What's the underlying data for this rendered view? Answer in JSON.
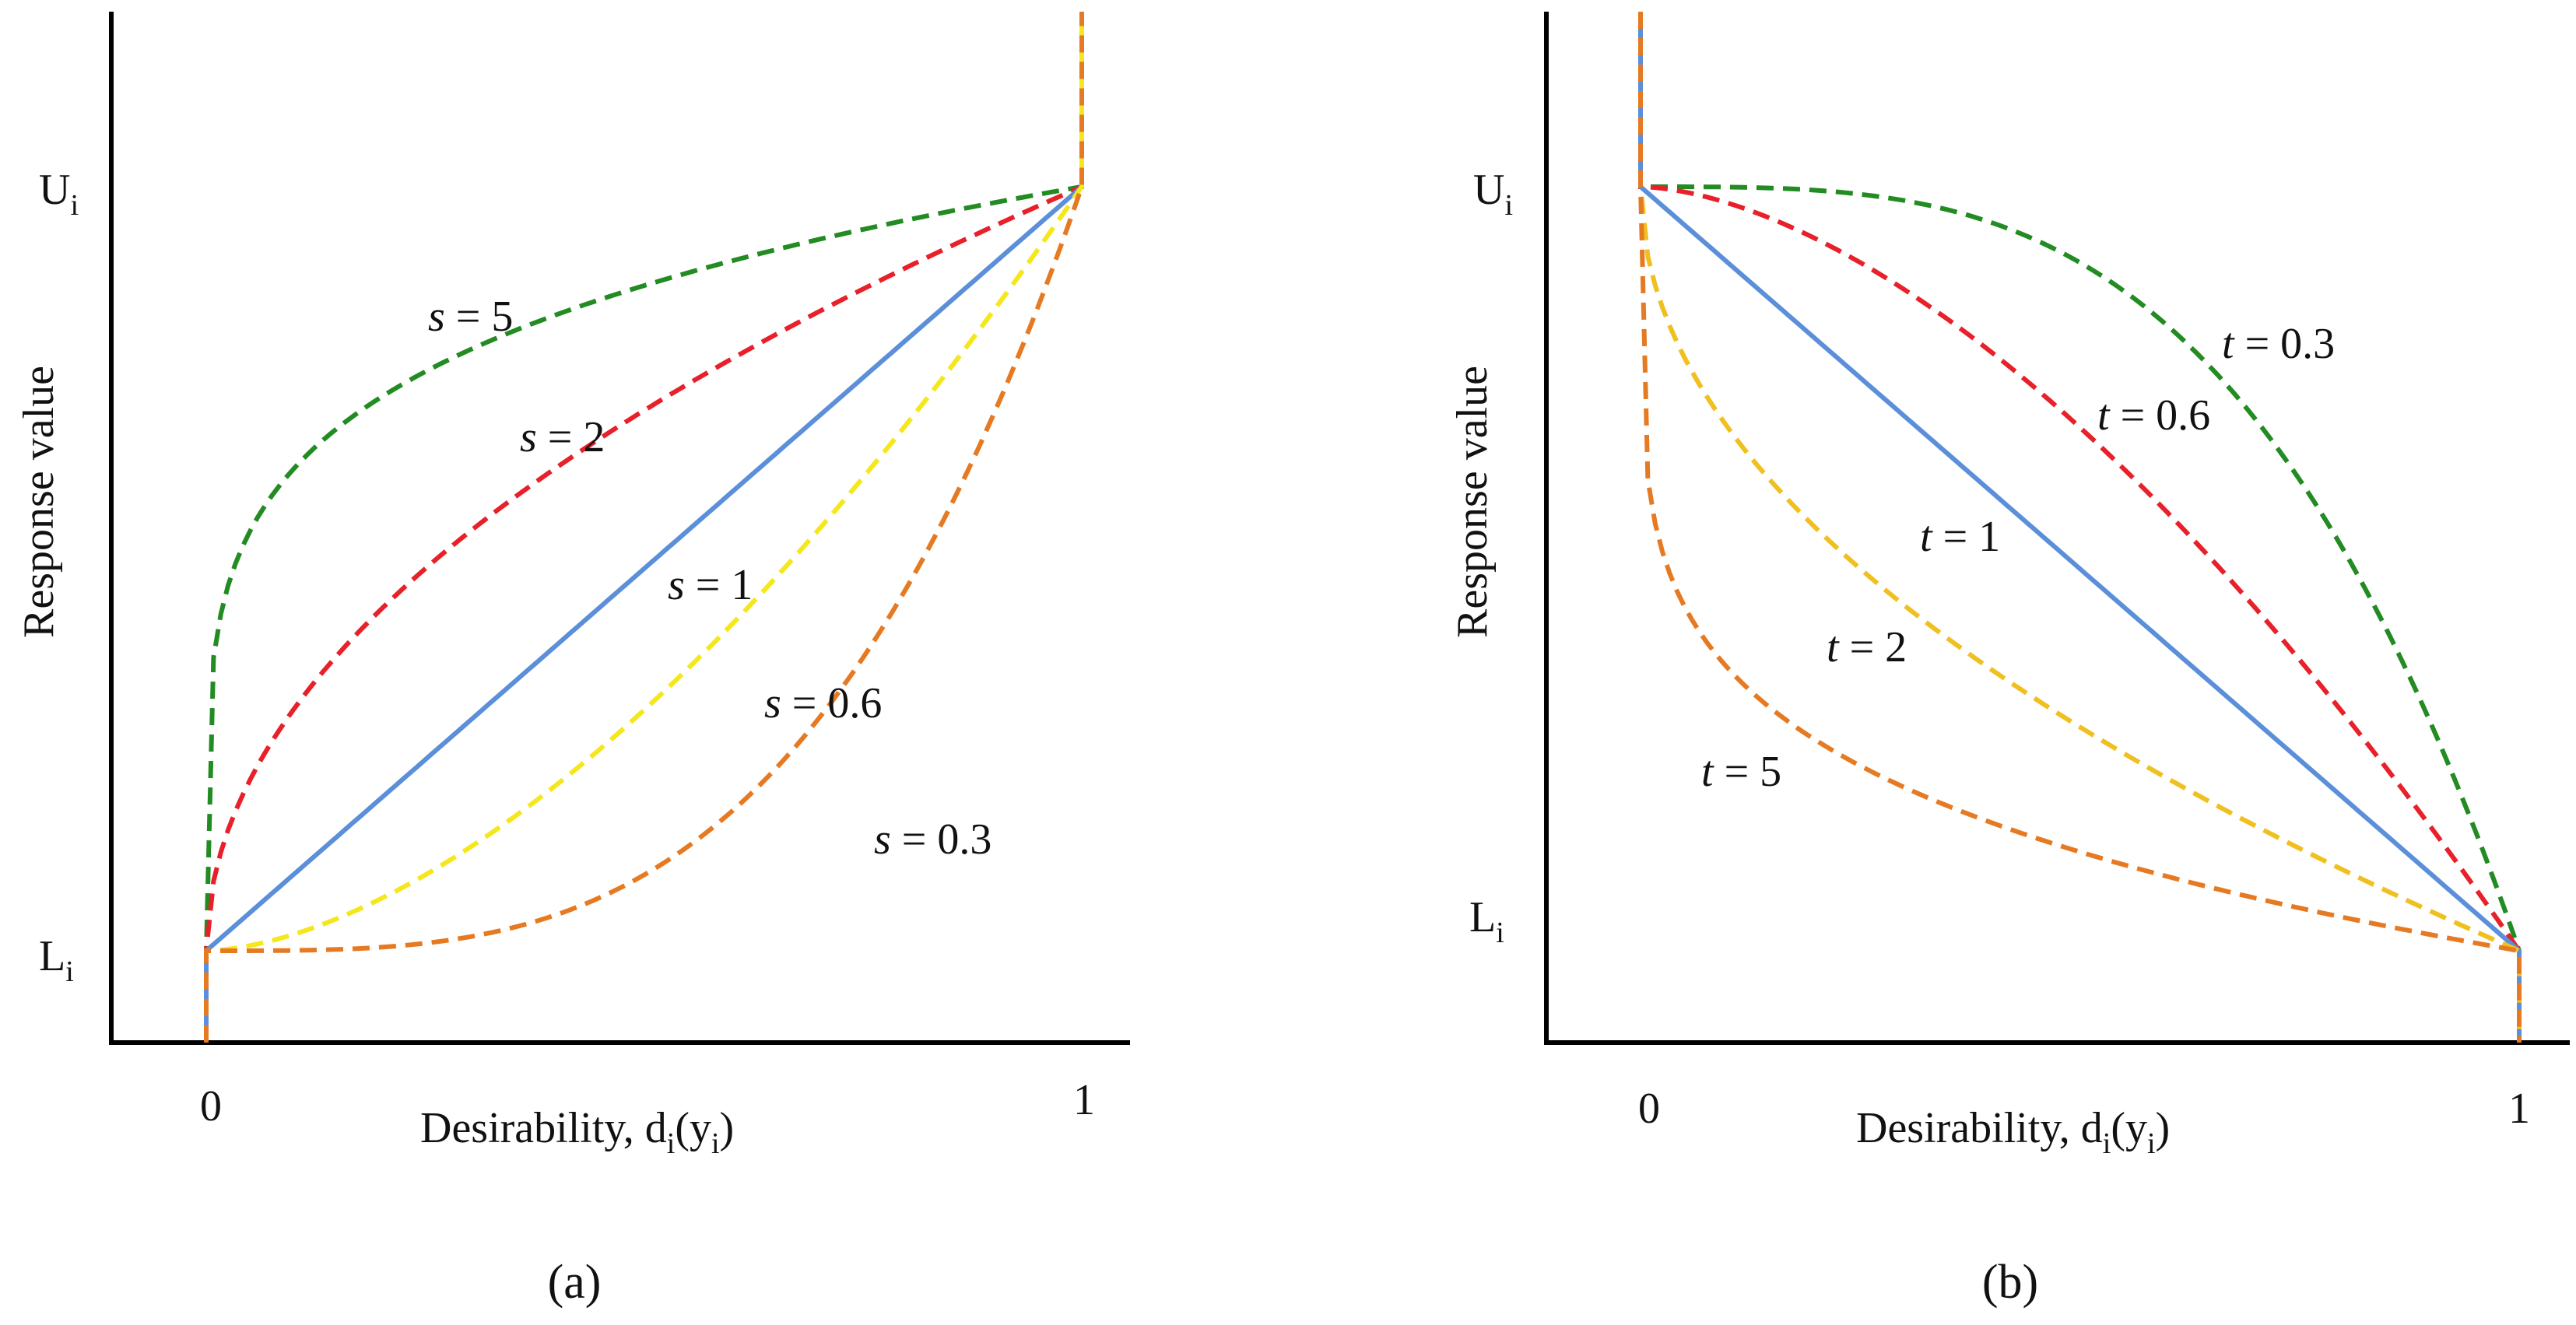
{
  "chart_data": [
    {
      "type": "line",
      "panel_label": "(a)",
      "xlabel": {
        "main": "Desirability, d",
        "sub1": "i",
        "paren": "(y",
        "sub2": "i",
        "close": ")"
      },
      "ylabel": "Response value",
      "x_ticks": [
        "0",
        "1"
      ],
      "y_ticks": [
        {
          "main": "L",
          "sub": "i"
        },
        {
          "main": "U",
          "sub": "i"
        }
      ],
      "param_symbol": "s",
      "series": [
        {
          "name": "s = 5",
          "value_label": "= 5",
          "exponent": 5,
          "color": "#228B22",
          "style": "dashed"
        },
        {
          "name": "s = 2",
          "value_label": "= 2",
          "exponent": 2,
          "color": "#E8202A",
          "style": "dashed"
        },
        {
          "name": "s = 1",
          "value_label": "= 1",
          "exponent": 1,
          "color": "#5B8FD9",
          "style": "solid"
        },
        {
          "name": "s = 0.6",
          "value_label": "= 0.6",
          "exponent": 0.6,
          "color": "#F5E71C",
          "style": "dashed"
        },
        {
          "name": "s = 0.3",
          "value_label": "= 0.3",
          "exponent": 0.3,
          "color": "#E67A22",
          "style": "dashed"
        }
      ]
    },
    {
      "type": "line",
      "panel_label": "(b)",
      "xlabel": {
        "main": "Desirability, d",
        "sub1": "i",
        "paren": "(y",
        "sub2": "i",
        "close": ")"
      },
      "ylabel": "Response value",
      "x_ticks": [
        "0",
        "1"
      ],
      "y_ticks": [
        {
          "main": "L",
          "sub": "i"
        },
        {
          "main": "U",
          "sub": "i"
        }
      ],
      "param_symbol": "t",
      "series": [
        {
          "name": "t = 0.3",
          "value_label": "= 0.3",
          "exponent": 0.3,
          "color": "#228B22",
          "style": "dashed"
        },
        {
          "name": "t = 0.6",
          "value_label": "= 0.6",
          "exponent": 0.6,
          "color": "#E8202A",
          "style": "dashed"
        },
        {
          "name": "t = 1",
          "value_label": "= 1",
          "exponent": 1,
          "color": "#5B8FD9",
          "style": "solid"
        },
        {
          "name": "t = 2",
          "value_label": "= 2",
          "exponent": 2,
          "color": "#F0C020",
          "style": "dashed"
        },
        {
          "name": "t = 5",
          "value_label": "= 5",
          "exponent": 5,
          "color": "#E67A22",
          "style": "dashed"
        }
      ]
    }
  ]
}
